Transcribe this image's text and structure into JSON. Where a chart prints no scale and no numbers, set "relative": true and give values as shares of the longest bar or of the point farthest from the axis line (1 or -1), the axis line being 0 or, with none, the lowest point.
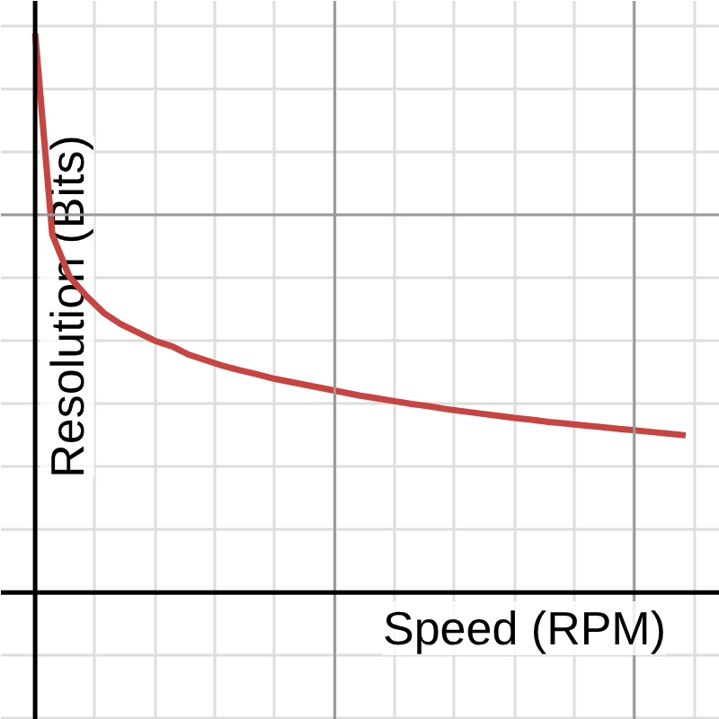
{
  "chart_data": {
    "type": "line",
    "relative": true,
    "xlabel": "Speed (RPM)",
    "ylabel": "Resolution (Bits)",
    "grid": true,
    "marker": "none",
    "line_style": "solid",
    "categories": [
      null,
      null,
      null,
      null,
      null,
      null,
      null,
      null,
      null,
      null,
      null,
      null,
      null,
      null,
      null,
      null,
      null,
      null,
      null,
      null,
      null,
      null,
      null,
      null,
      null,
      null,
      null,
      null,
      null,
      null,
      null,
      null,
      null,
      null,
      null,
      null,
      null,
      null,
      null
    ],
    "series": [
      {
        "color": "#c74440",
        "values": [
          1.0,
          0.64,
          0.565,
          0.53,
          0.5,
          0.48,
          0.465,
          0.45,
          0.44,
          0.425,
          0.415,
          0.405,
          0.397,
          0.39,
          0.382,
          0.376,
          0.37,
          0.364,
          0.358,
          0.352,
          0.347,
          0.342,
          0.337,
          0.333,
          0.328,
          0.324,
          0.32,
          0.316,
          0.312,
          0.309,
          0.305,
          0.302,
          0.299,
          0.296,
          0.293,
          0.29,
          0.287,
          0.284,
          0.281
        ]
      }
    ]
  }
}
